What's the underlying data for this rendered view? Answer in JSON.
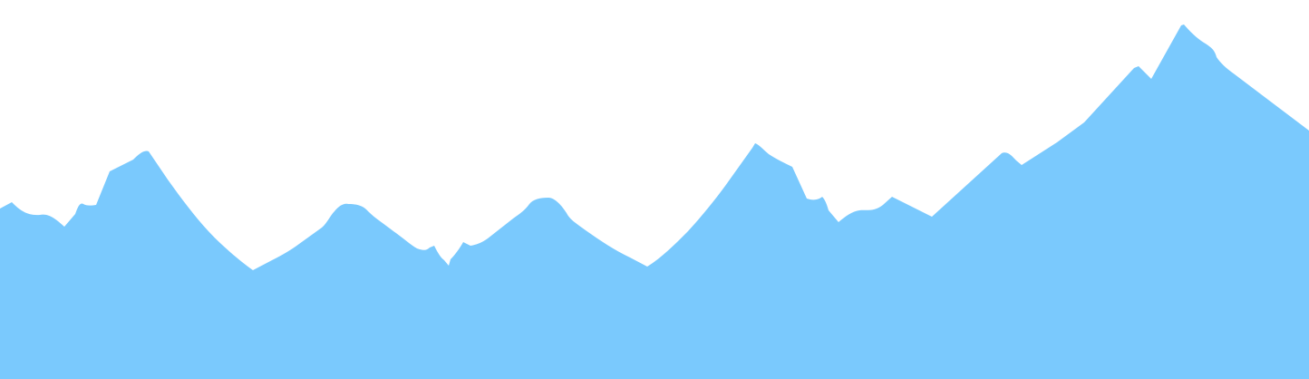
{
  "scene": {
    "background_color": "#ffffff",
    "mountain_color": "#7ac9fd",
    "icon": "mountain-range-silhouette"
  }
}
